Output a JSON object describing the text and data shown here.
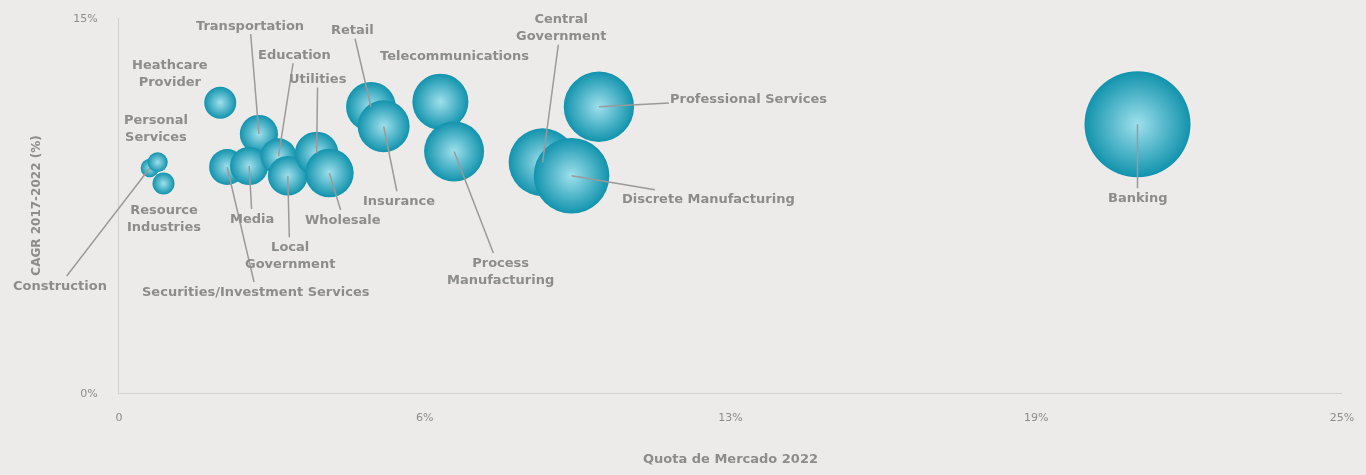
{
  "chart_data": {
    "type": "bubble",
    "xlabel": "Quota de Mercado 2022",
    "ylabel": "CAGR 2017-2022 (%)",
    "x": [
      0.63,
      0.79,
      0.91,
      2.07,
      2.86,
      2.21,
      2.66,
      3.26,
      3.45,
      4.04,
      4.3,
      5.15,
      5.41,
      6.57,
      6.85,
      8.66,
      9.25,
      9.81,
      20.82
    ],
    "values": [
      9.0,
      9.23,
      8.38,
      11.61,
      10.36,
      9.04,
      9.08,
      9.47,
      8.69,
      9.58,
      8.8,
      11.45,
      10.67,
      11.65,
      9.66,
      9.23,
      8.69,
      11.45,
      10.75
    ],
    "sizes": [
      0.03,
      0.036,
      0.043,
      0.091,
      0.13,
      0.115,
      0.13,
      0.115,
      0.14,
      0.17,
      0.21,
      0.22,
      0.24,
      0.28,
      0.32,
      0.41,
      0.51,
      0.44,
      1
    ],
    "color": "#1193ad",
    "xlim": [
      0,
      25
    ],
    "xticks": [
      0,
      {
        "value": 6.25,
        "label": "6%"
      },
      {
        "value": 12.5,
        "label": "13%"
      },
      {
        "value": 18.75,
        "label": "19%"
      },
      {
        "value": 25,
        "label": "25%"
      }
    ],
    "ylim": [
      0,
      15
    ],
    "yticks": [
      {
        "value": 0,
        "label": "0%"
      },
      {
        "value": 15,
        "label": "15%"
      }
    ],
    "grid": false,
    "annotations": [
      {
        "text": "Construction",
        "x": 0.63,
        "y": 9.0
      },
      {
        "text": "Personal Services",
        "x": 0.79,
        "y": 9.23
      },
      {
        "text": "Resource Industries",
        "x": 0.91,
        "y": 8.38
      },
      {
        "text": "Heathcare Provider",
        "x": 2.07,
        "y": 11.61
      },
      {
        "text": "Transportation",
        "x": 2.86,
        "y": 10.36
      },
      {
        "text": "Securities/Investment Services",
        "x": 2.21,
        "y": 9.04
      },
      {
        "text": "Media",
        "x": 2.66,
        "y": 9.08
      },
      {
        "text": "Education",
        "x": 3.26,
        "y": 9.47
      },
      {
        "text": "Local Government",
        "x": 3.45,
        "y": 8.69
      },
      {
        "text": "Utilities",
        "x": 4.04,
        "y": 9.58
      },
      {
        "text": "Wholesale",
        "x": 4.3,
        "y": 8.8
      },
      {
        "text": "Retail",
        "x": 5.15,
        "y": 11.45
      },
      {
        "text": "Insurance",
        "x": 5.41,
        "y": 10.67
      },
      {
        "text": "Telecommunications",
        "x": 6.57,
        "y": 11.65
      },
      {
        "text": "Process Manufacturing",
        "x": 6.85,
        "y": 9.66
      },
      {
        "text": "Central Government",
        "x": 8.66,
        "y": 9.23
      },
      {
        "text": "Discrete Manufacturing",
        "x": 9.25,
        "y": 8.69
      },
      {
        "text": "Professional Services",
        "x": 9.81,
        "y": 11.45
      },
      {
        "text": "Banking",
        "x": 20.82,
        "y": 10.75
      }
    ]
  }
}
